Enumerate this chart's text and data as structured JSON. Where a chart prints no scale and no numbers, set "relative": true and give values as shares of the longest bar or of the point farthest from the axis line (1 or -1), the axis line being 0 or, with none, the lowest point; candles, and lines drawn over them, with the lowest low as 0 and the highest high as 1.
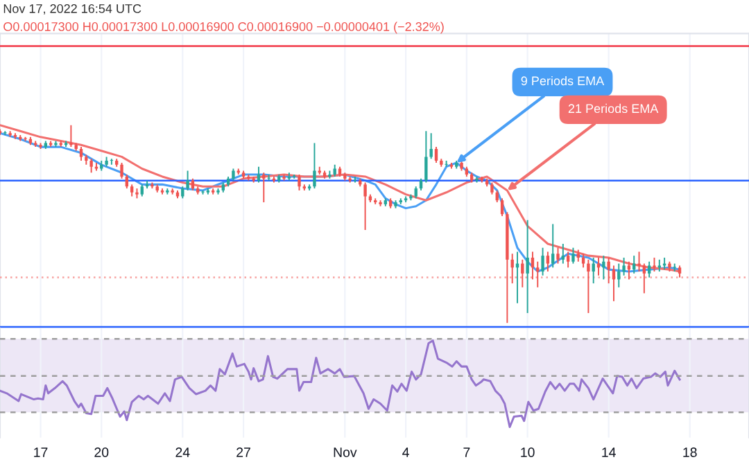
{
  "chart_data": [
    {
      "type": "candlestick",
      "relative": true,
      "tick_labels": false,
      "grid": "x",
      "colors": [
        "#ef5350",
        "#26a69a",
        "#ef5350",
        "#ef5350",
        "#ef5350",
        "#ef5350",
        "#ef5350",
        "#ef5350",
        "#ef5350",
        "#26a69a",
        "#ef5350",
        "#26a69a",
        "#ef5350",
        "#26a69a",
        "#ef5350",
        "#ef5350",
        "#ef5350",
        "#ef5350",
        "#ef5350",
        "#ef5350",
        "#26a69a",
        "#26a69a",
        "#26a69a",
        "#ef5350",
        "#ef5350",
        "#ef5350",
        "#ef5350",
        "#ef5350",
        "#26a69a",
        "#26a69a",
        "#ef5350",
        "#ef5350",
        "#ef5350",
        "#26a69a",
        "#ef5350",
        "#ef5350",
        "#26a69a",
        "#26a69a",
        "#ef5350",
        "#ef5350",
        "#26a69a",
        "#26a69a",
        "#ef5350",
        "#26a69a",
        "#26a69a",
        "#26a69a",
        "#26a69a",
        "#ef5350",
        "#ef5350",
        "#ef5350",
        "#ef5350",
        "#26a69a",
        "#ef5350",
        "#26a69a",
        "#ef5350",
        "#26a69a",
        "#ef5350",
        "#26a69a",
        "#26a69a",
        "#ef5350",
        "#ef5350",
        "#26a69a",
        "#26a69a",
        "#ef5350",
        "#ef5350",
        "#26a69a",
        "#26a69a",
        "#ef5350",
        "#ef5350",
        "#ef5350",
        "#26a69a",
        "#ef5350",
        "#ef5350",
        "#ef5350",
        "#ef5350",
        "#ef5350",
        "#26a69a",
        "#ef5350",
        "#26a69a",
        "#26a69a",
        "#26a69a",
        "#26a69a",
        "#26a69a",
        "#26a69a",
        "#26a69a",
        "#26a69a",
        "#ef5350",
        "#ef5350",
        "#26a69a",
        "#ef5350",
        "#26a69a",
        "#ef5350",
        "#ef5350",
        "#ef5350",
        "#26a69a",
        "#ef5350",
        "#ef5350",
        "#ef5350",
        "#ef5350",
        "#ef5350",
        "#ef5350",
        "#ef5350",
        "#26a69a",
        "#ef5350",
        "#26a69a",
        "#ef5350",
        "#ef5350",
        "#26a69a",
        "#ef5350",
        "#26a69a",
        "#ef5350",
        "#26a69a",
        "#ef5350",
        "#26a69a",
        "#ef5350",
        "#ef5350",
        "#ef5350",
        "#26a69a",
        "#ef5350",
        "#26a69a",
        "#ef5350",
        "#ef5350",
        "#26a69a",
        "#26a69a",
        "#ef5350",
        "#26a69a",
        "#ef5350",
        "#ef5350",
        "#26a69a",
        "#ef5350",
        "#26a69a",
        "#26a69a",
        "#ef5350",
        "#26a69a",
        "#ef5350"
      ],
      "x": [
        "2022-10-15T00:00",
        "2022-10-15T06:00",
        "2022-10-15T12:00",
        "2022-10-15T18:00",
        "2022-10-16T00:00",
        "2022-10-16T06:00",
        "2022-10-16T12:00",
        "2022-10-16T18:00",
        "2022-10-17T00:00",
        "2022-10-17T06:00",
        "2022-10-17T12:00",
        "2022-10-17T18:00",
        "2022-10-18T00:00",
        "2022-10-18T06:00",
        "2022-10-18T12:00",
        "2022-10-18T18:00",
        "2022-10-19T00:00",
        "2022-10-19T06:00",
        "2022-10-19T12:00",
        "2022-10-19T18:00",
        "2022-10-20T00:00",
        "2022-10-20T06:00",
        "2022-10-20T12:00",
        "2022-10-20T18:00",
        "2022-10-21T00:00",
        "2022-10-21T06:00",
        "2022-10-21T12:00",
        "2022-10-21T18:00",
        "2022-10-22T00:00",
        "2022-10-22T06:00",
        "2022-10-22T12:00",
        "2022-10-22T18:00",
        "2022-10-23T00:00",
        "2022-10-23T06:00",
        "2022-10-23T12:00",
        "2022-10-23T18:00",
        "2022-10-24T00:00",
        "2022-10-24T06:00",
        "2022-10-24T12:00",
        "2022-10-24T18:00",
        "2022-10-25T00:00",
        "2022-10-25T06:00",
        "2022-10-25T12:00",
        "2022-10-25T18:00",
        "2022-10-26T00:00",
        "2022-10-26T06:00",
        "2022-10-26T12:00",
        "2022-10-26T18:00",
        "2022-10-27T00:00",
        "2022-10-27T06:00",
        "2022-10-27T12:00",
        "2022-10-27T18:00",
        "2022-10-28T00:00",
        "2022-10-28T06:00",
        "2022-10-28T12:00",
        "2022-10-28T18:00",
        "2022-10-29T00:00",
        "2022-10-29T06:00",
        "2022-10-29T12:00",
        "2022-10-29T18:00",
        "2022-10-30T00:00",
        "2022-10-30T06:00",
        "2022-10-30T12:00",
        "2022-10-30T18:00",
        "2022-10-31T00:00",
        "2022-10-31T06:00",
        "2022-10-31T12:00",
        "2022-10-31T18:00",
        "2022-11-01T00:00",
        "2022-11-01T06:00",
        "2022-11-01T12:00",
        "2022-11-01T18:00",
        "2022-11-02T00:00",
        "2022-11-02T06:00",
        "2022-11-02T12:00",
        "2022-11-02T18:00",
        "2022-11-03T00:00",
        "2022-11-03T06:00",
        "2022-11-03T12:00",
        "2022-11-03T18:00",
        "2022-11-04T00:00",
        "2022-11-04T06:00",
        "2022-11-04T12:00",
        "2022-11-04T18:00",
        "2022-11-05T00:00",
        "2022-11-05T06:00",
        "2022-11-05T12:00",
        "2022-11-05T18:00",
        "2022-11-06T00:00",
        "2022-11-06T06:00",
        "2022-11-06T12:00",
        "2022-11-06T18:00",
        "2022-11-07T00:00",
        "2022-11-07T06:00",
        "2022-11-07T12:00",
        "2022-11-07T18:00",
        "2022-11-08T00:00",
        "2022-11-08T06:00",
        "2022-11-08T12:00",
        "2022-11-08T18:00",
        "2022-11-09T00:00",
        "2022-11-09T06:00",
        "2022-11-09T12:00",
        "2022-11-09T18:00",
        "2022-11-10T00:00",
        "2022-11-10T06:00",
        "2022-11-10T12:00",
        "2022-11-10T18:00",
        "2022-11-11T00:00",
        "2022-11-11T06:00",
        "2022-11-11T12:00",
        "2022-11-11T18:00",
        "2022-11-12T00:00",
        "2022-11-12T06:00",
        "2022-11-12T12:00",
        "2022-11-12T18:00",
        "2022-11-13T00:00",
        "2022-11-13T06:00",
        "2022-11-13T12:00",
        "2022-11-13T18:00",
        "2022-11-14T00:00",
        "2022-11-14T06:00",
        "2022-11-14T12:00",
        "2022-11-14T18:00",
        "2022-11-15T00:00",
        "2022-11-15T06:00",
        "2022-11-15T12:00",
        "2022-11-15T18:00",
        "2022-11-16T00:00",
        "2022-11-16T06:00",
        "2022-11-16T12:00",
        "2022-11-16T18:00",
        "2022-11-17T00:00",
        "2022-11-17T06:00",
        "2022-11-17T12:00"
      ],
      "ohlc": [
        [
          0.97,
          0.98,
          0.95,
          0.96
        ],
        [
          0.96,
          0.97,
          0.95,
          0.96
        ],
        [
          0.96,
          0.97,
          0.94,
          0.95
        ],
        [
          0.95,
          0.96,
          0.93,
          0.94
        ],
        [
          0.94,
          0.95,
          0.92,
          0.93
        ],
        [
          0.93,
          0.94,
          0.92,
          0.93
        ],
        [
          0.93,
          0.94,
          0.9,
          0.91
        ],
        [
          0.91,
          0.92,
          0.89,
          0.9
        ],
        [
          0.9,
          0.91,
          0.88,
          0.89
        ],
        [
          0.89,
          0.92,
          0.88,
          0.91
        ],
        [
          0.91,
          0.92,
          0.89,
          0.9
        ],
        [
          0.9,
          0.92,
          0.89,
          0.91
        ],
        [
          0.91,
          0.92,
          0.89,
          0.9
        ],
        [
          0.9,
          0.92,
          0.89,
          0.91
        ],
        [
          0.91,
          1.0,
          0.89,
          0.9
        ],
        [
          0.9,
          0.91,
          0.87,
          0.88
        ],
        [
          0.88,
          0.89,
          0.82,
          0.84
        ],
        [
          0.84,
          0.85,
          0.8,
          0.82
        ],
        [
          0.82,
          0.83,
          0.76,
          0.79
        ],
        [
          0.79,
          0.81,
          0.77,
          0.78
        ],
        [
          0.78,
          0.82,
          0.77,
          0.8
        ],
        [
          0.8,
          0.84,
          0.79,
          0.82
        ],
        [
          0.82,
          0.83,
          0.8,
          0.82
        ],
        [
          0.82,
          0.83,
          0.79,
          0.8
        ],
        [
          0.8,
          0.81,
          0.73,
          0.74
        ],
        [
          0.74,
          0.75,
          0.68,
          0.69
        ],
        [
          0.69,
          0.7,
          0.64,
          0.66
        ],
        [
          0.66,
          0.68,
          0.63,
          0.65
        ],
        [
          0.65,
          0.7,
          0.64,
          0.69
        ],
        [
          0.69,
          0.72,
          0.68,
          0.7
        ],
        [
          0.7,
          0.71,
          0.68,
          0.69
        ],
        [
          0.69,
          0.7,
          0.66,
          0.67
        ],
        [
          0.67,
          0.68,
          0.65,
          0.66
        ],
        [
          0.66,
          0.68,
          0.65,
          0.67
        ],
        [
          0.67,
          0.68,
          0.65,
          0.66
        ],
        [
          0.66,
          0.67,
          0.63,
          0.64
        ],
        [
          0.64,
          0.69,
          0.63,
          0.68
        ],
        [
          0.68,
          0.77,
          0.67,
          0.72
        ],
        [
          0.72,
          0.73,
          0.67,
          0.68
        ],
        [
          0.68,
          0.69,
          0.65,
          0.66
        ],
        [
          0.66,
          0.67,
          0.65,
          0.66
        ],
        [
          0.66,
          0.68,
          0.65,
          0.67
        ],
        [
          0.67,
          0.68,
          0.65,
          0.66
        ],
        [
          0.66,
          0.68,
          0.65,
          0.67
        ],
        [
          0.67,
          0.71,
          0.66,
          0.7
        ],
        [
          0.7,
          0.74,
          0.69,
          0.73
        ],
        [
          0.73,
          0.78,
          0.72,
          0.77
        ],
        [
          0.77,
          0.78,
          0.75,
          0.76
        ],
        [
          0.76,
          0.77,
          0.73,
          0.74
        ],
        [
          0.74,
          0.75,
          0.72,
          0.73
        ],
        [
          0.73,
          0.74,
          0.71,
          0.72
        ],
        [
          0.72,
          0.79,
          0.71,
          0.75
        ],
        [
          0.75,
          0.76,
          0.61,
          0.73
        ],
        [
          0.73,
          0.75,
          0.72,
          0.73
        ],
        [
          0.73,
          0.74,
          0.71,
          0.72
        ],
        [
          0.72,
          0.75,
          0.71,
          0.74
        ],
        [
          0.74,
          0.75,
          0.72,
          0.73
        ],
        [
          0.73,
          0.76,
          0.72,
          0.74
        ],
        [
          0.74,
          0.75,
          0.73,
          0.74
        ],
        [
          0.74,
          0.75,
          0.67,
          0.69
        ],
        [
          0.69,
          0.7,
          0.67,
          0.68
        ],
        [
          0.68,
          0.7,
          0.67,
          0.69
        ],
        [
          0.69,
          0.91,
          0.68,
          0.77
        ],
        [
          0.77,
          0.79,
          0.75,
          0.76
        ],
        [
          0.76,
          0.77,
          0.73,
          0.74
        ],
        [
          0.74,
          0.77,
          0.73,
          0.75
        ],
        [
          0.75,
          0.8,
          0.74,
          0.78
        ],
        [
          0.78,
          0.79,
          0.74,
          0.75
        ],
        [
          0.75,
          0.76,
          0.72,
          0.73
        ],
        [
          0.73,
          0.74,
          0.71,
          0.72
        ],
        [
          0.72,
          0.74,
          0.71,
          0.72
        ],
        [
          0.72,
          0.73,
          0.69,
          0.7
        ],
        [
          0.7,
          0.71,
          0.47,
          0.64
        ],
        [
          0.64,
          0.65,
          0.61,
          0.62
        ],
        [
          0.62,
          0.63,
          0.6,
          0.61
        ],
        [
          0.61,
          0.62,
          0.59,
          0.6
        ],
        [
          0.6,
          0.63,
          0.59,
          0.62
        ],
        [
          0.62,
          0.63,
          0.58,
          0.59
        ],
        [
          0.59,
          0.62,
          0.58,
          0.61
        ],
        [
          0.61,
          0.63,
          0.6,
          0.62
        ],
        [
          0.62,
          0.64,
          0.61,
          0.63
        ],
        [
          0.63,
          0.65,
          0.62,
          0.64
        ],
        [
          0.64,
          0.69,
          0.63,
          0.68
        ],
        [
          0.68,
          0.73,
          0.67,
          0.72
        ],
        [
          0.72,
          0.97,
          0.71,
          0.84
        ],
        [
          0.84,
          0.96,
          0.83,
          0.88
        ],
        [
          0.88,
          0.89,
          0.81,
          0.82
        ],
        [
          0.82,
          0.83,
          0.79,
          0.8
        ],
        [
          0.8,
          0.82,
          0.79,
          0.8
        ],
        [
          0.8,
          0.81,
          0.78,
          0.79
        ],
        [
          0.79,
          0.82,
          0.78,
          0.81
        ],
        [
          0.81,
          0.82,
          0.77,
          0.78
        ],
        [
          0.78,
          0.79,
          0.74,
          0.75
        ],
        [
          0.75,
          0.76,
          0.71,
          0.72
        ],
        [
          0.72,
          0.74,
          0.71,
          0.73
        ],
        [
          0.73,
          0.74,
          0.71,
          0.72
        ],
        [
          0.72,
          0.73,
          0.69,
          0.7
        ],
        [
          0.7,
          0.71,
          0.65,
          0.66
        ],
        [
          0.66,
          0.67,
          0.61,
          0.62
        ],
        [
          0.62,
          0.63,
          0.54,
          0.55
        ],
        [
          0.55,
          0.56,
          0.0,
          0.32
        ],
        [
          0.32,
          0.35,
          0.2,
          0.28
        ],
        [
          0.28,
          0.36,
          0.1,
          0.3
        ],
        [
          0.3,
          0.32,
          0.18,
          0.25
        ],
        [
          0.25,
          0.52,
          0.05,
          0.33
        ],
        [
          0.33,
          0.36,
          0.22,
          0.28
        ],
        [
          0.28,
          0.31,
          0.18,
          0.26
        ],
        [
          0.26,
          0.38,
          0.24,
          0.34
        ],
        [
          0.34,
          0.36,
          0.26,
          0.3
        ],
        [
          0.3,
          0.5,
          0.28,
          0.35
        ],
        [
          0.35,
          0.38,
          0.3,
          0.32
        ],
        [
          0.32,
          0.4,
          0.3,
          0.34
        ],
        [
          0.34,
          0.36,
          0.28,
          0.31
        ],
        [
          0.31,
          0.38,
          0.3,
          0.35
        ],
        [
          0.35,
          0.37,
          0.31,
          0.33
        ],
        [
          0.33,
          0.35,
          0.28,
          0.3
        ],
        [
          0.3,
          0.32,
          0.05,
          0.26
        ],
        [
          0.26,
          0.33,
          0.2,
          0.3
        ],
        [
          0.3,
          0.33,
          0.24,
          0.28
        ],
        [
          0.28,
          0.34,
          0.22,
          0.31
        ],
        [
          0.31,
          0.33,
          0.2,
          0.27
        ],
        [
          0.27,
          0.29,
          0.11,
          0.22
        ],
        [
          0.22,
          0.3,
          0.18,
          0.26
        ],
        [
          0.26,
          0.33,
          0.24,
          0.29
        ],
        [
          0.29,
          0.31,
          0.22,
          0.27
        ],
        [
          0.27,
          0.34,
          0.25,
          0.3
        ],
        [
          0.3,
          0.36,
          0.26,
          0.29
        ],
        [
          0.29,
          0.3,
          0.15,
          0.25
        ],
        [
          0.25,
          0.31,
          0.23,
          0.29
        ],
        [
          0.29,
          0.33,
          0.26,
          0.28
        ],
        [
          0.28,
          0.32,
          0.26,
          0.29
        ],
        [
          0.29,
          0.33,
          0.27,
          0.3
        ],
        [
          0.3,
          0.31,
          0.26,
          0.28
        ],
        [
          0.28,
          0.3,
          0.26,
          0.28
        ],
        [
          0.28,
          0.29,
          0.23,
          0.25
        ]
      ],
      "series": [
        {
          "type": "line",
          "color": "#4a9ff5",
          "x": [
            "2022-10-15T00:00",
            "2022-10-16T00:00",
            "2022-10-17T00:00",
            "2022-10-18T00:00",
            "2022-10-19T00:00",
            "2022-10-20T00:00",
            "2022-10-21T00:00",
            "2022-10-22T00:00",
            "2022-10-23T00:00",
            "2022-10-24T00:00",
            "2022-10-25T00:00",
            "2022-10-26T00:00",
            "2022-10-27T00:00",
            "2022-10-28T00:00",
            "2022-10-29T00:00",
            "2022-10-30T00:00",
            "2022-10-31T00:00",
            "2022-11-01T00:00",
            "2022-11-02T00:00",
            "2022-11-02T12:00",
            "2022-11-03T00:00",
            "2022-11-03T12:00",
            "2022-11-04T00:00",
            "2022-11-04T12:00",
            "2022-11-05T00:00",
            "2022-11-05T12:00",
            "2022-11-06T00:00",
            "2022-11-06T12:00",
            "2022-11-07T00:00",
            "2022-11-07T12:00",
            "2022-11-08T00:00",
            "2022-11-08T12:00",
            "2022-11-09T00:00",
            "2022-11-09T12:00",
            "2022-11-10T00:00",
            "2022-11-10T12:00",
            "2022-11-11T00:00",
            "2022-11-12T00:00",
            "2022-11-13T00:00",
            "2022-11-14T00:00",
            "2022-11-15T00:00",
            "2022-11-16T00:00",
            "2022-11-17T00:00",
            "2022-11-17T12:00"
          ],
          "values": [
            0.96,
            0.93,
            0.89,
            0.89,
            0.86,
            0.8,
            0.76,
            0.7,
            0.7,
            0.68,
            0.67,
            0.71,
            0.75,
            0.75,
            0.74,
            0.74,
            0.74,
            0.75,
            0.72,
            0.7,
            0.63,
            0.6,
            0.58,
            0.59,
            0.62,
            0.7,
            0.79,
            0.81,
            0.77,
            0.74,
            0.72,
            0.67,
            0.54,
            0.38,
            0.31,
            0.26,
            0.28,
            0.35,
            0.33,
            0.27,
            0.26,
            0.27,
            0.28,
            0.27
          ]
        },
        {
          "type": "line",
          "color": "#f2706f",
          "x": [
            "2022-10-15T00:00",
            "2022-10-16T00:00",
            "2022-10-17T00:00",
            "2022-10-18T00:00",
            "2022-10-19T00:00",
            "2022-10-20T00:00",
            "2022-10-21T00:00",
            "2022-10-22T00:00",
            "2022-10-23T00:00",
            "2022-10-24T00:00",
            "2022-10-25T00:00",
            "2022-10-26T00:00",
            "2022-10-27T00:00",
            "2022-10-28T00:00",
            "2022-10-29T00:00",
            "2022-10-30T00:00",
            "2022-10-31T00:00",
            "2022-11-01T00:00",
            "2022-11-02T00:00",
            "2022-11-03T00:00",
            "2022-11-04T00:00",
            "2022-11-05T00:00",
            "2022-11-06T00:00",
            "2022-11-07T00:00",
            "2022-11-08T00:00",
            "2022-11-09T00:00",
            "2022-11-10T00:00",
            "2022-11-11T00:00",
            "2022-11-12T00:00",
            "2022-11-13T00:00",
            "2022-11-14T00:00",
            "2022-11-15T00:00",
            "2022-11-16T00:00",
            "2022-11-17T00:00",
            "2022-11-17T12:00"
          ],
          "values": [
            1.0,
            0.97,
            0.94,
            0.92,
            0.9,
            0.87,
            0.84,
            0.78,
            0.74,
            0.71,
            0.69,
            0.69,
            0.73,
            0.74,
            0.75,
            0.74,
            0.74,
            0.75,
            0.74,
            0.7,
            0.65,
            0.62,
            0.66,
            0.71,
            0.74,
            0.67,
            0.49,
            0.4,
            0.37,
            0.34,
            0.33,
            0.3,
            0.28,
            0.27,
            0.26
          ]
        }
      ],
      "annotations": [
        "Nov 17, 2022 16:54 UTC",
        "O0.00017300 H0.00017300 L0.00016900 C0.00016900 −0.00000401 (−2.32%)",
        {
          "text": "9 Periods EMA",
          "x": "2022-11-06T12:00",
          "y": 0.81
        },
        {
          "text": "21 Periods EMA",
          "x": "2022-11-09T00:00",
          "y": 0.67
        }
      ],
      "ref_lines": [
        {
          "axis": "y",
          "value": 1.4,
          "color": "#f23645",
          "line_style": "solid"
        },
        {
          "axis": "y",
          "value": 0.72,
          "color": "#2962ff",
          "line_style": "solid"
        },
        {
          "axis": "y",
          "value": -0.02,
          "color": "#2962ff",
          "line_style": "solid"
        },
        {
          "axis": "y",
          "value": 0.23,
          "color": "#f7a1a0",
          "line_style": "dotted"
        }
      ],
      "xlim": [
        "2022-10-15T00:00",
        "2022-11-20T22:00"
      ],
      "xticks": [
        {
          "value": "2022-10-17",
          "label": null
        },
        {
          "value": "2022-10-20",
          "label": null
        },
        {
          "value": "2022-10-24",
          "label": null
        },
        {
          "value": "2022-10-27",
          "label": null
        },
        {
          "value": "2022-11-01",
          "label": null
        },
        {
          "value": "2022-11-04",
          "label": null
        },
        {
          "value": "2022-11-07",
          "label": null
        },
        {
          "value": "2022-11-10",
          "label": null
        },
        {
          "value": "2022-11-14",
          "label": null
        },
        {
          "value": "2022-11-18",
          "label": null
        }
      ]
    },
    {
      "type": "line",
      "relative": true,
      "tick_labels": "x",
      "grid": "x",
      "series": [
        {
          "color": "#9575cd",
          "x": [
            "2022-10-15T00:00",
            "2022-10-15T08:00",
            "2022-10-15T22:00",
            "2022-10-16T01:00",
            "2022-10-16T16:00",
            "2022-10-16T21:00",
            "2022-10-17T03:00",
            "2022-10-17T06:00",
            "2022-10-17T09:00",
            "2022-10-17T17:00",
            "2022-10-18T02:00",
            "2022-10-18T07:00",
            "2022-10-18T16:00",
            "2022-10-18T21:00",
            "2022-10-19T00:00",
            "2022-10-19T06:00",
            "2022-10-19T12:00",
            "2022-10-19T17:00",
            "2022-10-20T02:00",
            "2022-10-20T07:00",
            "2022-10-20T13:00",
            "2022-10-20T22:00",
            "2022-10-21T03:00",
            "2022-10-21T06:00",
            "2022-10-21T12:00",
            "2022-10-21T20:00",
            "2022-10-22T02:00",
            "2022-10-22T07:00",
            "2022-10-22T19:00",
            "2022-10-23T03:00",
            "2022-10-23T09:00",
            "2022-10-23T15:00",
            "2022-10-23T23:00",
            "2022-10-24T08:00",
            "2022-10-24T16:00",
            "2022-10-25T03:00",
            "2022-10-25T09:00",
            "2022-10-25T15:00",
            "2022-10-25T20:00",
            "2022-10-26T02:00",
            "2022-10-26T11:00",
            "2022-10-26T16:00",
            "2022-10-27T01:00",
            "2022-10-27T06:00",
            "2022-10-27T09:00",
            "2022-10-27T12:00",
            "2022-10-27T18:00",
            "2022-10-27T23:00",
            "2022-10-28T05:00",
            "2022-10-28T11:00",
            "2022-10-28T16:00",
            "2022-10-29T04:00",
            "2022-10-29T09:00",
            "2022-10-29T15:00",
            "2022-10-29T18:00",
            "2022-10-29T23:00",
            "2022-10-30T08:00",
            "2022-10-30T14:00",
            "2022-10-30T19:00",
            "2022-10-31T04:00",
            "2022-10-31T12:00",
            "2022-10-31T18:00",
            "2022-10-31T23:00",
            "2022-11-01T11:00",
            "2022-11-01T17:00",
            "2022-11-01T22:00",
            "2022-11-02T04:00",
            "2022-11-02T10:00",
            "2022-11-02T18:00",
            "2022-11-03T02:00",
            "2022-11-03T08:00",
            "2022-11-03T14:00",
            "2022-11-03T19:00",
            "2022-11-04T01:00",
            "2022-11-04T07:00",
            "2022-11-04T12:00",
            "2022-11-04T18:00",
            "2022-11-05T03:00",
            "2022-11-05T08:00",
            "2022-11-05T14:00",
            "2022-11-06T01:00",
            "2022-11-06T07:00",
            "2022-11-06T12:00",
            "2022-11-06T18:00",
            "2022-11-07T00:00",
            "2022-11-07T06:00",
            "2022-11-07T11:00",
            "2022-11-07T17:00",
            "2022-11-07T20:00",
            "2022-11-08T04:00",
            "2022-11-08T10:00",
            "2022-11-08T16:00",
            "2022-11-08T21:00",
            "2022-11-09T03:00",
            "2022-11-09T08:00",
            "2022-11-09T17:00",
            "2022-11-09T20:00",
            "2022-11-10T01:00",
            "2022-11-10T07:00",
            "2022-11-10T13:00",
            "2022-11-10T21:00",
            "2022-11-11T03:00",
            "2022-11-11T09:00",
            "2022-11-11T14:00",
            "2022-11-11T20:00",
            "2022-11-12T02:00",
            "2022-11-12T07:00",
            "2022-11-12T13:00",
            "2022-11-12T16:00",
            "2022-11-13T00:00",
            "2022-11-13T06:00",
            "2022-11-13T17:00",
            "2022-11-14T05:00",
            "2022-11-14T10:00",
            "2022-11-14T16:00",
            "2022-11-14T22:00",
            "2022-11-15T03:00",
            "2022-11-15T09:00",
            "2022-11-15T17:00",
            "2022-11-16T02:00",
            "2022-11-16T07:00",
            "2022-11-16T13:00",
            "2022-11-16T19:00",
            "2022-11-16T22:00",
            "2022-11-17T06:00",
            "2022-11-17T12:00"
          ],
          "values": [
            0.42,
            0.39,
            0.3,
            0.38,
            0.32,
            0.33,
            0.32,
            0.48,
            0.39,
            0.45,
            0.53,
            0.48,
            0.3,
            0.23,
            0.27,
            0.16,
            0.15,
            0.36,
            0.36,
            0.45,
            0.33,
            0.12,
            0.18,
            0.08,
            0.29,
            0.36,
            0.32,
            0.36,
            0.27,
            0.39,
            0.3,
            0.55,
            0.58,
            0.45,
            0.38,
            0.42,
            0.48,
            0.42,
            0.67,
            0.61,
            0.85,
            0.7,
            0.73,
            0.64,
            0.55,
            0.68,
            0.53,
            0.55,
            0.82,
            0.58,
            0.56,
            0.67,
            0.67,
            0.67,
            0.42,
            0.52,
            0.52,
            0.8,
            0.62,
            0.67,
            0.62,
            0.67,
            0.58,
            0.59,
            0.48,
            0.39,
            0.21,
            0.32,
            0.27,
            0.19,
            0.48,
            0.41,
            0.5,
            0.42,
            0.64,
            0.55,
            0.61,
            0.97,
            1.0,
            0.79,
            0.74,
            0.7,
            0.76,
            0.7,
            0.7,
            0.55,
            0.48,
            0.52,
            0.55,
            0.53,
            0.42,
            0.36,
            0.27,
            0.0,
            0.12,
            0.13,
            0.07,
            0.29,
            0.19,
            0.21,
            0.41,
            0.52,
            0.44,
            0.5,
            0.42,
            0.5,
            0.5,
            0.42,
            0.55,
            0.45,
            0.32,
            0.56,
            0.39,
            0.59,
            0.58,
            0.48,
            0.56,
            0.45,
            0.56,
            0.58,
            0.62,
            0.58,
            0.64,
            0.48,
            0.65,
            0.55
          ]
        }
      ],
      "ref_lines": [
        {
          "axis": "y",
          "value": 1.02,
          "color": "#9e9e9e",
          "line_style": "dashed"
        },
        {
          "axis": "y",
          "value": 0.59,
          "color": "#9e9e9e",
          "line_style": "dashed"
        },
        {
          "axis": "y",
          "value": 0.17,
          "color": "#9e9e9e",
          "line_style": "dashed"
        }
      ],
      "bands": [
        {
          "axis": "y",
          "from": 0.17,
          "to": 1.02,
          "color": "#ede7f6"
        }
      ],
      "xlim": [
        "2022-10-15T00:00",
        "2022-11-20T22:00"
      ],
      "xticks": [
        {
          "value": "2022-10-17",
          "label": "17"
        },
        {
          "value": "2022-10-20",
          "label": "20"
        },
        {
          "value": "2022-10-24",
          "label": "24"
        },
        {
          "value": "2022-10-27",
          "label": "27"
        },
        {
          "value": "2022-11-01",
          "label": "Nov"
        },
        {
          "value": "2022-11-04",
          "label": "4"
        },
        {
          "value": "2022-11-07",
          "label": "7"
        },
        {
          "value": "2022-11-10",
          "label": "10"
        },
        {
          "value": "2022-11-14",
          "label": "14"
        },
        {
          "value": "2022-11-18",
          "label": "18"
        }
      ]
    }
  ]
}
